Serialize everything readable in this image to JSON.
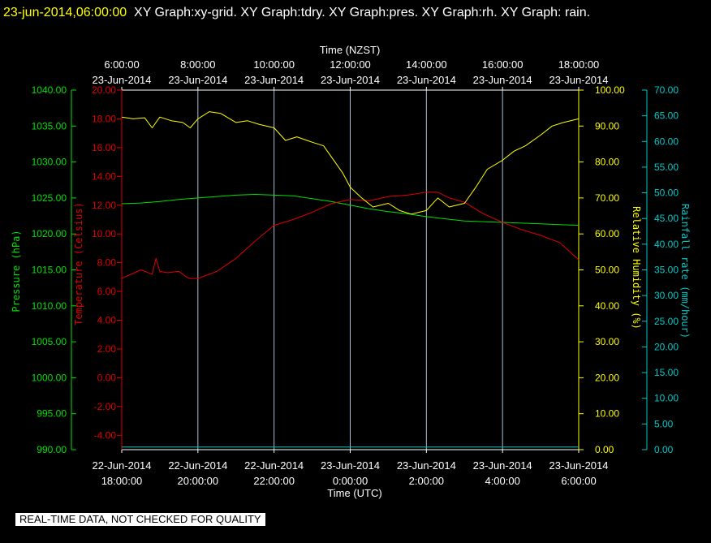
{
  "header": {
    "timestamp": "23-jun-2014,06:00:00",
    "title": "XY Graph:xy-grid.  XY Graph:tdry.  XY Graph:pres.  XY Graph:rh.  XY Graph: rain."
  },
  "notice": "REAL-TIME DATA, NOT CHECKED FOR QUALITY",
  "colors": {
    "pressure": "#00e000",
    "temperature": "#e00000",
    "humidity": "#ffff00",
    "rain": "#00c8c8",
    "grid": "#a8c0d8",
    "text": "#ffffff"
  },
  "chart_data": {
    "type": "line",
    "title": "",
    "x_top_label": "Time (NZST)",
    "x_bottom_label": "Time (UTC)",
    "x_top_ticks": [
      [
        "6:00:00",
        "23-Jun-2014"
      ],
      [
        "8:00:00",
        "23-Jun-2014"
      ],
      [
        "10:00:00",
        "23-Jun-2014"
      ],
      [
        "12:00:00",
        "23-Jun-2014"
      ],
      [
        "14:00:00",
        "23-Jun-2014"
      ],
      [
        "16:00:00",
        "23-Jun-2014"
      ],
      [
        "18:00:00",
        "23-Jun-2014"
      ]
    ],
    "x_bottom_ticks": [
      [
        "22-Jun-2014",
        "18:00:00"
      ],
      [
        "22-Jun-2014",
        "20:00:00"
      ],
      [
        "22-Jun-2014",
        "22:00:00"
      ],
      [
        "23-Jun-2014",
        "0:00:00"
      ],
      [
        "23-Jun-2014",
        "2:00:00"
      ],
      [
        "23-Jun-2014",
        "4:00:00"
      ],
      [
        "23-Jun-2014",
        "6:00:00"
      ]
    ],
    "x_unit": "hours since 22-Jun-2014 18:00:00 UTC",
    "xlim": [
      0,
      12
    ],
    "axes": {
      "pressure": {
        "label": "Pressure (hPa)",
        "range": [
          990,
          1040
        ],
        "ticks": [
          "1040.00",
          "1035.00",
          "1030.00",
          "1025.00",
          "1020.00",
          "1015.00",
          "1010.00",
          "1005.00",
          "1000.00",
          "995.00",
          "990.00"
        ]
      },
      "temperature": {
        "label": "Temperature (Celsius)",
        "range": [
          -5,
          20
        ],
        "ticks": [
          "20.00",
          "18.00",
          "16.00",
          "14.00",
          "12.00",
          "10.00",
          "8.00",
          "6.00",
          "4.00",
          "2.00",
          "0.00",
          "-2.00",
          "-4.00"
        ]
      },
      "humidity": {
        "label": "Relative Humidity (%)",
        "range": [
          0,
          100
        ],
        "ticks": [
          "100.00",
          "90.00",
          "80.00",
          "70.00",
          "60.00",
          "50.00",
          "40.00",
          "30.00",
          "20.00",
          "10.00",
          "0.00"
        ]
      },
      "rain": {
        "label": "Rainfall rate (mm/hour)",
        "range": [
          0,
          70
        ],
        "ticks": [
          "70.00",
          "65.00",
          "60.00",
          "55.00",
          "50.00",
          "45.00",
          "40.00",
          "35.00",
          "30.00",
          "25.00",
          "20.00",
          "15.00",
          "10.00",
          "5.00",
          "0.00"
        ]
      }
    },
    "series": [
      {
        "name": "pres",
        "axis": "pressure",
        "x": [
          0,
          0.5,
          1,
          1.5,
          2,
          2.5,
          3,
          3.5,
          4,
          4.5,
          5,
          5.5,
          6,
          6.5,
          7,
          7.5,
          8,
          8.5,
          9,
          9.5,
          10,
          10.5,
          11,
          11.5,
          12
        ],
        "y": [
          1024.2,
          1024.3,
          1024.5,
          1024.8,
          1025.0,
          1025.2,
          1025.4,
          1025.5,
          1025.4,
          1025.3,
          1024.9,
          1024.5,
          1024.0,
          1023.5,
          1023.1,
          1022.8,
          1022.4,
          1022.1,
          1021.8,
          1021.7,
          1021.6,
          1021.5,
          1021.4,
          1021.3,
          1021.2
        ]
      },
      {
        "name": "tdry",
        "axis": "temperature",
        "x": [
          0,
          0.5,
          0.8,
          0.9,
          1.0,
          1.2,
          1.5,
          1.7,
          1.8,
          2.0,
          2.5,
          3.0,
          3.5,
          4.0,
          4.5,
          5.0,
          5.5,
          6.0,
          6.5,
          7.0,
          7.5,
          8.0,
          8.3,
          8.6,
          9.0,
          9.5,
          10.0,
          10.5,
          11.0,
          11.5,
          12.0
        ],
        "y": [
          6.9,
          7.5,
          7.2,
          8.3,
          7.4,
          7.3,
          7.4,
          7.0,
          6.9,
          6.9,
          7.4,
          8.3,
          9.5,
          10.6,
          11.0,
          11.5,
          12.1,
          12.4,
          12.3,
          12.6,
          12.7,
          12.9,
          12.9,
          12.5,
          12.2,
          11.4,
          10.8,
          10.3,
          9.9,
          9.4,
          8.2
        ]
      },
      {
        "name": "rh",
        "axis": "humidity",
        "x": [
          0,
          0.3,
          0.6,
          0.8,
          1.0,
          1.3,
          1.6,
          1.8,
          2.0,
          2.3,
          2.6,
          3.0,
          3.3,
          3.6,
          4.0,
          4.3,
          4.6,
          5.0,
          5.3,
          5.6,
          5.8,
          6.0,
          6.3,
          6.6,
          7.0,
          7.3,
          7.6,
          8.0,
          8.3,
          8.6,
          9.0,
          9.3,
          9.6,
          10.0,
          10.3,
          10.6,
          11.0,
          11.3,
          11.6,
          12.0
        ],
        "y": [
          92.5,
          92.0,
          92.3,
          89.5,
          92.5,
          91.5,
          91.0,
          89.5,
          92.0,
          94.0,
          93.5,
          91.0,
          91.5,
          90.5,
          89.5,
          86.0,
          87.0,
          85.5,
          84.5,
          80.0,
          77.0,
          73.0,
          70.0,
          67.5,
          68.5,
          66.5,
          65.5,
          66.5,
          70.0,
          67.5,
          68.5,
          73.0,
          78.0,
          80.5,
          83.0,
          84.5,
          87.5,
          90.0,
          91.0,
          92.0
        ]
      },
      {
        "name": "rain",
        "axis": "rain",
        "x": [
          0,
          12
        ],
        "y": [
          0.5,
          0.5
        ]
      }
    ]
  }
}
